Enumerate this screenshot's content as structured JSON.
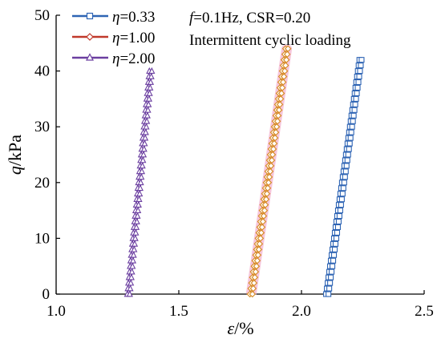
{
  "chart_data": {
    "type": "line",
    "xlabel_symbol": "ε",
    "xlabel_unit": "/%",
    "ylabel_symbol": "q",
    "ylabel_unit": "/kPa",
    "xlim": [
      1.0,
      2.5
    ],
    "ylim": [
      0,
      50
    ],
    "xticks": [
      "1.0",
      "1.5",
      "2.0",
      "2.5"
    ],
    "yticks": [
      "0",
      "10",
      "20",
      "30",
      "40",
      "50"
    ],
    "grid": false,
    "legend_position": "top-left",
    "annotation": {
      "line1_symbol": "f",
      "line1_rest": "=0.1Hz, CSR=0.20",
      "line2": "Intermittent cyclic loading"
    },
    "series": [
      {
        "name_symbol": "η",
        "name_value": "=0.33",
        "color": "#2e64b4",
        "marker": "square",
        "points": [
          [
            2.1,
            0
          ],
          [
            2.236,
            42
          ],
          [
            2.245,
            42
          ],
          [
            2.11,
            0
          ]
        ]
      },
      {
        "name_symbol": "η",
        "name_value": "=1.00",
        "color": "#c0392b",
        "marker": "diamond",
        "points": [
          [
            1.79,
            0
          ],
          [
            1.935,
            44
          ],
          [
            1.945,
            44
          ],
          [
            1.8,
            0
          ]
        ]
      },
      {
        "name_symbol": "η",
        "name_value": "=2.00",
        "color": "#6b3fa0",
        "marker": "triangle",
        "points": [
          [
            1.29,
            0
          ],
          [
            1.38,
            40
          ],
          [
            1.39,
            40
          ],
          [
            1.3,
            0
          ]
        ]
      }
    ]
  }
}
